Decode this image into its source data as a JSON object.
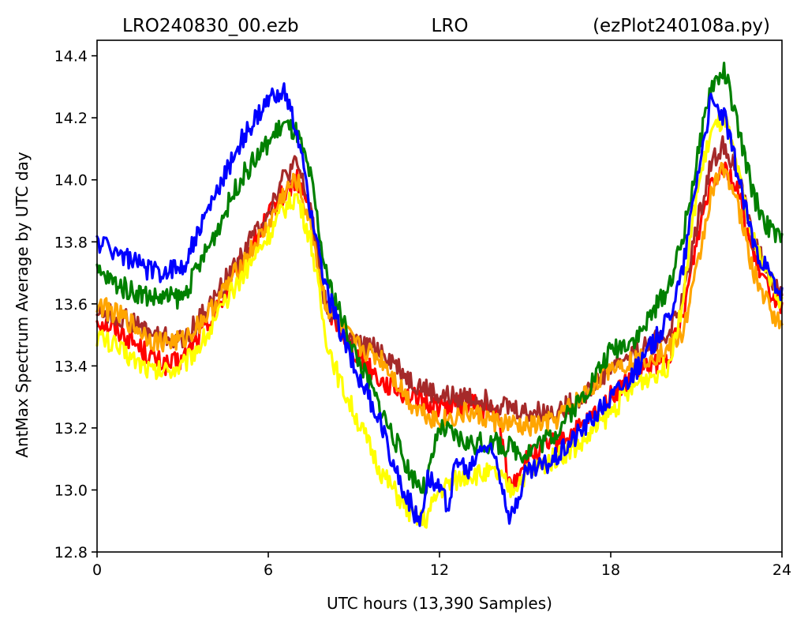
{
  "chart_data": {
    "type": "line",
    "title": {
      "left": "LRO240830_00.ezb",
      "center": "LRO",
      "right": "(ezPlot240108a.py)"
    },
    "xlabel": "UTC hours  (13,390 Samples)",
    "ylabel": "AntMax Spectrum Average by UTC day",
    "xlim": [
      0,
      24
    ],
    "ylim": [
      12.8,
      14.45
    ],
    "xticks": [
      0,
      6,
      12,
      18,
      24
    ],
    "xtick_labels": [
      "0",
      "6",
      "12",
      "18",
      "24"
    ],
    "yticks": [
      12.8,
      13.0,
      13.2,
      13.4,
      13.6,
      13.8,
      14.0,
      14.2,
      14.4
    ],
    "ytick_labels": [
      "12.8",
      "13.0",
      "13.2",
      "13.4",
      "13.6",
      "13.8",
      "14.0",
      "14.2",
      "14.4"
    ],
    "grid": false,
    "legend": "none",
    "series": [
      {
        "color": "#ff0000",
        "x": [
          0,
          1,
          2,
          2.5,
          3,
          4,
          5,
          6,
          6.5,
          7,
          7.5,
          8,
          9,
          10,
          11,
          11.5,
          12,
          13,
          14,
          14.5,
          15,
          16,
          17,
          18,
          19,
          20,
          20.5,
          21,
          21.5,
          22,
          22.5,
          23,
          23.5,
          24
        ],
        "y": [
          13.55,
          13.5,
          13.42,
          13.4,
          13.42,
          13.55,
          13.72,
          13.88,
          13.95,
          14.0,
          13.9,
          13.6,
          13.45,
          13.35,
          13.3,
          13.28,
          13.27,
          13.28,
          13.25,
          13.0,
          13.1,
          13.15,
          13.2,
          13.3,
          13.38,
          13.42,
          13.55,
          13.8,
          14.0,
          14.05,
          13.95,
          13.75,
          13.65,
          13.6
        ]
      },
      {
        "color": "#a52a2a",
        "x": [
          0,
          1,
          2,
          3,
          4,
          5,
          6,
          6.5,
          7,
          7.5,
          8,
          9,
          10,
          11,
          12,
          13,
          14,
          15,
          16,
          17,
          18,
          19,
          20,
          20.5,
          21,
          21.5,
          22,
          22.5,
          23,
          23.5,
          24
        ],
        "y": [
          13.58,
          13.55,
          13.5,
          13.48,
          13.6,
          13.75,
          13.9,
          14.0,
          14.05,
          13.9,
          13.6,
          13.47,
          13.45,
          13.35,
          13.3,
          13.3,
          13.28,
          13.25,
          13.25,
          13.3,
          13.4,
          13.45,
          13.5,
          13.6,
          13.85,
          14.05,
          14.12,
          14.0,
          13.8,
          13.7,
          13.62
        ]
      },
      {
        "color": "#ffa500",
        "x": [
          0,
          1,
          2,
          3,
          4,
          5,
          6,
          6.5,
          7,
          7.5,
          8,
          9,
          10,
          11,
          12,
          13,
          14,
          15,
          16,
          17,
          18,
          19,
          20,
          20.5,
          21,
          21.5,
          22,
          22.5,
          23,
          23.5,
          24
        ],
        "y": [
          13.6,
          13.55,
          13.48,
          13.48,
          13.58,
          13.72,
          13.85,
          13.95,
          14.0,
          13.85,
          13.6,
          13.47,
          13.42,
          13.28,
          13.22,
          13.25,
          13.22,
          13.2,
          13.22,
          13.3,
          13.4,
          13.42,
          13.45,
          13.5,
          13.7,
          13.95,
          14.05,
          13.9,
          13.7,
          13.6,
          13.52
        ]
      },
      {
        "color": "#ffff00",
        "x": [
          0,
          1,
          2,
          3,
          4,
          5,
          6,
          6.5,
          7,
          7.5,
          8,
          8.5,
          9,
          10,
          11,
          11.5,
          12,
          13,
          14,
          14.5,
          15,
          16,
          17,
          18,
          19,
          20,
          20.5,
          21,
          21.5,
          22,
          22.5,
          23,
          23.5,
          24
        ],
        "y": [
          13.5,
          13.44,
          13.38,
          13.4,
          13.52,
          13.68,
          13.82,
          13.9,
          13.95,
          13.8,
          13.5,
          13.35,
          13.25,
          13.05,
          12.92,
          12.9,
          13.0,
          13.05,
          13.05,
          13.0,
          13.05,
          13.1,
          13.15,
          13.25,
          13.35,
          13.4,
          13.6,
          13.95,
          14.15,
          14.2,
          14.0,
          13.8,
          13.7,
          13.6
        ]
      },
      {
        "color": "#008000",
        "x": [
          0,
          1,
          2,
          3,
          4,
          5,
          6,
          6.5,
          7,
          7.5,
          8,
          9,
          10,
          11,
          11.5,
          12,
          13,
          14,
          15,
          16,
          17,
          18,
          19,
          20,
          20.5,
          21,
          21.5,
          22,
          22.5,
          23,
          23.5,
          24
        ],
        "y": [
          13.7,
          13.65,
          13.62,
          13.62,
          13.8,
          14.0,
          14.12,
          14.18,
          14.15,
          14.0,
          13.7,
          13.45,
          13.25,
          13.05,
          13.0,
          13.2,
          13.15,
          13.15,
          13.12,
          13.18,
          13.3,
          13.45,
          13.5,
          13.65,
          13.8,
          14.05,
          14.3,
          14.35,
          14.15,
          13.95,
          13.85,
          13.8
        ]
      },
      {
        "color": "#0000ff",
        "x": [
          0,
          0.5,
          1,
          2,
          3,
          4,
          5,
          6,
          6.5,
          7,
          7.5,
          8,
          9,
          10,
          10.5,
          11,
          11.3,
          11.6,
          12,
          12.3,
          12.6,
          13,
          13.5,
          14,
          14.5,
          15,
          16,
          17,
          18,
          19,
          20,
          20.5,
          21,
          21.5,
          22,
          22.5,
          23,
          23.5,
          24
        ],
        "y": [
          13.8,
          13.78,
          13.75,
          13.7,
          13.72,
          13.92,
          14.12,
          14.25,
          14.3,
          14.15,
          13.9,
          13.65,
          13.4,
          13.2,
          13.05,
          12.95,
          12.9,
          13.05,
          13.0,
          12.95,
          13.1,
          13.05,
          13.15,
          13.1,
          12.9,
          13.05,
          13.1,
          13.2,
          13.3,
          13.4,
          13.55,
          13.7,
          14.0,
          14.25,
          14.2,
          14.0,
          13.8,
          13.7,
          13.62
        ]
      }
    ]
  }
}
